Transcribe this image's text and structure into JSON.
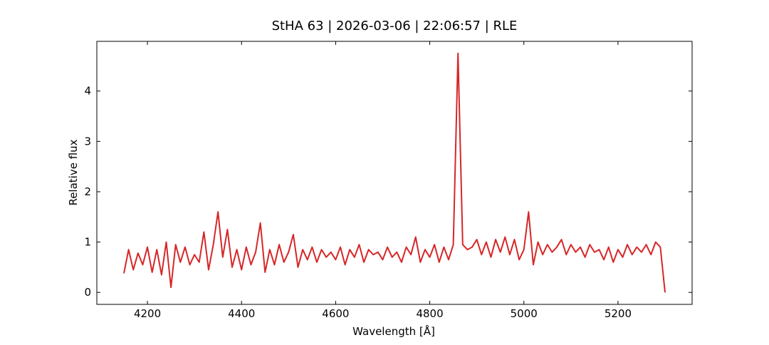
{
  "chart_data": {
    "type": "line",
    "title": "StHA 63 | 2026-03-06 | 22:06:57 | RLE",
    "xlabel": "Wavelength [Å]",
    "ylabel": "Relative flux",
    "x": [
      4150,
      4160,
      4170,
      4180,
      4190,
      4200,
      4210,
      4220,
      4230,
      4240,
      4250,
      4260,
      4270,
      4280,
      4290,
      4300,
      4310,
      4320,
      4330,
      4340,
      4350,
      4360,
      4370,
      4380,
      4390,
      4400,
      4410,
      4420,
      4430,
      4440,
      4450,
      4460,
      4470,
      4480,
      4490,
      4500,
      4510,
      4520,
      4530,
      4540,
      4550,
      4560,
      4570,
      4580,
      4590,
      4600,
      4610,
      4620,
      4630,
      4640,
      4650,
      4660,
      4670,
      4680,
      4690,
      4700,
      4710,
      4720,
      4730,
      4740,
      4750,
      4760,
      4770,
      4780,
      4790,
      4800,
      4810,
      4820,
      4830,
      4840,
      4850,
      4860,
      4870,
      4880,
      4890,
      4900,
      4910,
      4920,
      4930,
      4940,
      4950,
      4960,
      4970,
      4980,
      4990,
      5000,
      5010,
      5020,
      5030,
      5040,
      5050,
      5060,
      5070,
      5080,
      5090,
      5100,
      5110,
      5120,
      5130,
      5140,
      5150,
      5160,
      5170,
      5180,
      5190,
      5200,
      5210,
      5220,
      5230,
      5240,
      5250,
      5260,
      5270,
      5280,
      5290,
      5300
    ],
    "series": [
      {
        "color": "#d62728",
        "values": [
          0.38,
          0.85,
          0.45,
          0.78,
          0.55,
          0.9,
          0.4,
          0.85,
          0.35,
          1.0,
          0.1,
          0.95,
          0.6,
          0.9,
          0.55,
          0.75,
          0.6,
          1.2,
          0.45,
          0.95,
          1.6,
          0.7,
          1.25,
          0.5,
          0.85,
          0.45,
          0.9,
          0.55,
          0.8,
          1.38,
          0.4,
          0.85,
          0.55,
          0.95,
          0.6,
          0.8,
          1.15,
          0.5,
          0.85,
          0.65,
          0.9,
          0.6,
          0.85,
          0.7,
          0.8,
          0.65,
          0.9,
          0.55,
          0.85,
          0.7,
          0.95,
          0.6,
          0.85,
          0.75,
          0.8,
          0.65,
          0.9,
          0.7,
          0.8,
          0.6,
          0.9,
          0.75,
          1.1,
          0.6,
          0.85,
          0.7,
          0.95,
          0.6,
          0.9,
          0.65,
          0.95,
          4.75,
          0.95,
          0.85,
          0.9,
          1.05,
          0.75,
          1.0,
          0.7,
          1.05,
          0.8,
          1.1,
          0.75,
          1.05,
          0.65,
          0.85,
          1.6,
          0.55,
          1.0,
          0.75,
          0.95,
          0.8,
          0.9,
          1.05,
          0.75,
          0.95,
          0.8,
          0.9,
          0.7,
          0.95,
          0.8,
          0.85,
          0.65,
          0.9,
          0.6,
          0.85,
          0.7,
          0.95,
          0.75,
          0.9,
          0.8,
          0.95,
          0.75,
          1.0,
          0.9,
          0.0
        ]
      }
    ],
    "xlim": [
      4092.5,
      5357.5
    ],
    "ylim": [
      -0.2375,
      4.9875
    ],
    "xticks": [
      4200,
      4400,
      4600,
      4800,
      5000,
      5200
    ],
    "yticks": [
      0,
      1,
      2,
      3,
      4
    ],
    "grid": false
  }
}
